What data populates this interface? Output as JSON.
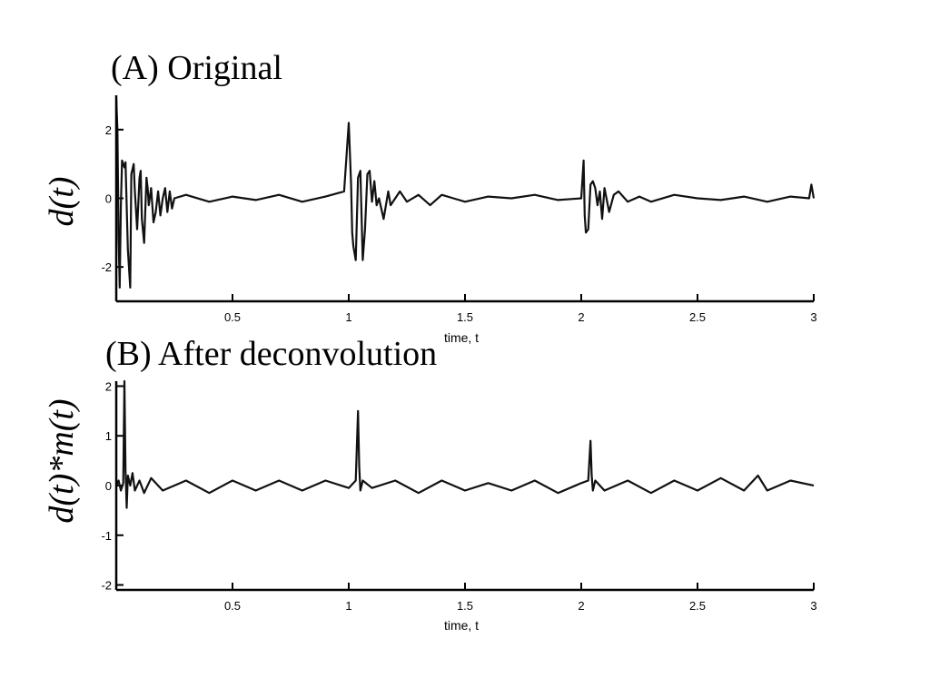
{
  "chart_data": [
    {
      "type": "line",
      "title": "(A) Original",
      "ylabel": "d(t)",
      "xlabel": "time, t",
      "xlim": [
        0,
        3
      ],
      "ylim": [
        -3,
        3
      ],
      "xticks": [
        0.5,
        1,
        1.5,
        2,
        2.5,
        3
      ],
      "xtick_labels": [
        "0.5",
        "1",
        "1.5",
        "2",
        "2.5",
        "3"
      ],
      "yticks": [
        -2,
        0,
        2
      ],
      "ytick_labels": [
        "-2",
        "0",
        "2"
      ],
      "grid": false,
      "series": [
        {
          "x": [
            0,
            0.005,
            0.01,
            0.015,
            0.02,
            0.025,
            0.03,
            0.035,
            0.04,
            0.05,
            0.06,
            0.065,
            0.075,
            0.08,
            0.09,
            0.1,
            0.105,
            0.11,
            0.12,
            0.13,
            0.135,
            0.14,
            0.15,
            0.16,
            0.17,
            0.18,
            0.19,
            0.2,
            0.21,
            0.22,
            0.23,
            0.24,
            0.25,
            0.3,
            0.4,
            0.5,
            0.6,
            0.7,
            0.8,
            0.9,
            0.98,
            1.0,
            1.01,
            1.015,
            1.02,
            1.03,
            1.04,
            1.05,
            1.06,
            1.07,
            1.08,
            1.09,
            1.1,
            1.11,
            1.12,
            1.13,
            1.15,
            1.17,
            1.18,
            1.2,
            1.22,
            1.25,
            1.3,
            1.35,
            1.4,
            1.45,
            1.5,
            1.6,
            1.7,
            1.8,
            1.9,
            2.0,
            2.01,
            2.015,
            2.02,
            2.03,
            2.04,
            2.05,
            2.06,
            2.07,
            2.08,
            2.09,
            2.1,
            2.12,
            2.14,
            2.16,
            2.2,
            2.25,
            2.3,
            2.4,
            2.5,
            2.6,
            2.7,
            2.8,
            2.9,
            2.98,
            2.99,
            3.0
          ],
          "y": [
            2.9,
            2.0,
            -1.1,
            -2.6,
            -0.2,
            1.1,
            1.0,
            0.9,
            1.05,
            -1.5,
            -2.6,
            0.7,
            1.0,
            0.2,
            -0.9,
            0.6,
            0.8,
            -0.6,
            -1.3,
            0.6,
            0.3,
            -0.2,
            0.3,
            -0.7,
            -0.4,
            0.2,
            -0.5,
            0.0,
            0.3,
            -0.4,
            0.2,
            -0.3,
            0.0,
            0.1,
            -0.1,
            0.05,
            -0.05,
            0.1,
            -0.1,
            0.05,
            0.2,
            2.2,
            0.4,
            -1.0,
            -1.4,
            -1.8,
            0.6,
            0.8,
            -1.8,
            -0.9,
            0.7,
            0.8,
            -0.1,
            0.5,
            -0.2,
            0.0,
            -0.6,
            0.2,
            -0.2,
            0.0,
            0.2,
            -0.1,
            0.1,
            -0.2,
            0.1,
            0.0,
            -0.1,
            0.05,
            0.0,
            0.1,
            -0.05,
            0.0,
            1.1,
            -0.5,
            -1.0,
            -0.9,
            0.4,
            0.5,
            0.3,
            -0.2,
            0.2,
            -0.6,
            0.3,
            -0.4,
            0.1,
            0.2,
            -0.1,
            0.05,
            -0.1,
            0.1,
            0.0,
            -0.05,
            0.05,
            -0.1,
            0.05,
            0.0,
            0.4,
            0.0
          ]
        }
      ]
    },
    {
      "type": "line",
      "title": "(B) After deconvolution",
      "ylabel": "d(t)*m(t)",
      "xlabel": "time, t",
      "xlim": [
        0,
        3
      ],
      "ylim": [
        -2.1,
        2.1
      ],
      "xticks": [
        0.5,
        1,
        1.5,
        2,
        2.5,
        3
      ],
      "xtick_labels": [
        "0.5",
        "1",
        "1.5",
        "2",
        "2.5",
        "3"
      ],
      "yticks": [
        -2,
        -1,
        0,
        1,
        2
      ],
      "ytick_labels": [
        "-2",
        "-1",
        "0",
        "1",
        "2"
      ],
      "grid": false,
      "series": [
        {
          "x": [
            0,
            0.01,
            0.02,
            0.03,
            0.035,
            0.04,
            0.045,
            0.05,
            0.06,
            0.07,
            0.08,
            0.1,
            0.12,
            0.15,
            0.2,
            0.3,
            0.4,
            0.5,
            0.6,
            0.7,
            0.8,
            0.9,
            1.0,
            1.03,
            1.04,
            1.045,
            1.05,
            1.06,
            1.1,
            1.2,
            1.3,
            1.4,
            1.5,
            1.6,
            1.7,
            1.8,
            1.9,
            2.0,
            2.03,
            2.04,
            2.045,
            2.05,
            2.06,
            2.1,
            2.2,
            2.3,
            2.4,
            2.5,
            2.6,
            2.7,
            2.76,
            2.8,
            2.9,
            3.0
          ],
          "y": [
            0.0,
            0.1,
            -0.1,
            0.05,
            2.1,
            0.3,
            -0.45,
            0.2,
            0.0,
            0.25,
            -0.1,
            0.1,
            -0.15,
            0.15,
            -0.1,
            0.1,
            -0.15,
            0.1,
            -0.1,
            0.1,
            -0.1,
            0.1,
            -0.05,
            0.1,
            1.5,
            0.4,
            -0.1,
            0.1,
            -0.05,
            0.1,
            -0.15,
            0.1,
            -0.1,
            0.05,
            -0.1,
            0.1,
            -0.15,
            0.05,
            0.1,
            0.9,
            0.2,
            -0.1,
            0.1,
            -0.1,
            0.1,
            -0.15,
            0.1,
            -0.1,
            0.15,
            -0.1,
            0.2,
            -0.1,
            0.1,
            0.0
          ]
        }
      ]
    }
  ]
}
